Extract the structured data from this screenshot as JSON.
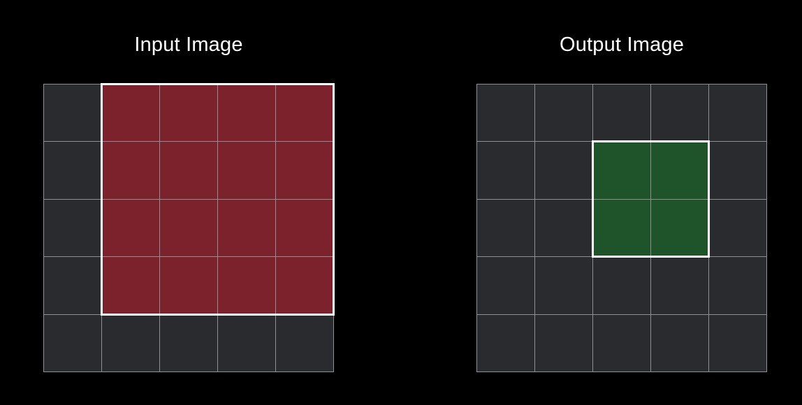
{
  "input_panel": {
    "title": "Input Image",
    "rows": 5,
    "cols": 5,
    "base_color": "#2a2b2e",
    "highlight_color": "#7c222d",
    "highlight_region": {
      "row_start": 0,
      "col_start": 1,
      "row_span": 4,
      "col_span": 4
    }
  },
  "output_panel": {
    "title": "Output Image",
    "rows": 5,
    "cols": 5,
    "base_color": "#2a2b2e",
    "highlight_color": "#1f5329",
    "highlight_region": {
      "row_start": 1,
      "col_start": 2,
      "row_span": 2,
      "col_span": 2
    }
  },
  "grid_line_color": "#8e8e93",
  "highlight_border_color": "#ffffff"
}
